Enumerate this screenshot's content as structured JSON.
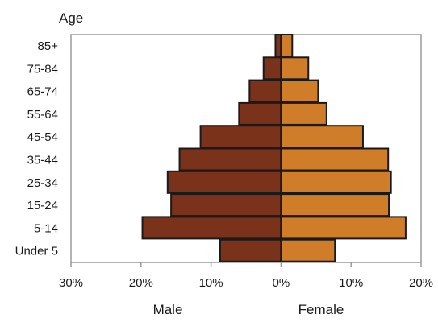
{
  "chart_data": {
    "type": "bar",
    "orientation": "horizontal",
    "y_axis_title": "Age",
    "categories": [
      "85+",
      "75-84",
      "65-74",
      "55-64",
      "45-54",
      "35-44",
      "25-34",
      "15-24",
      "5-14",
      "Under 5"
    ],
    "series": [
      {
        "name": "Male",
        "values": [
          0.8,
          2.5,
          4.5,
          6.0,
          11.5,
          14.5,
          16.2,
          15.7,
          19.8,
          8.7
        ],
        "color": "#7a331a"
      },
      {
        "name": "Female",
        "values": [
          1.6,
          3.9,
          5.3,
          6.5,
          11.7,
          15.3,
          15.7,
          15.4,
          17.8,
          7.7
        ],
        "color": "#d07d2a"
      }
    ],
    "x_ticks": [
      "30%",
      "20%",
      "10%",
      "0%",
      "10%",
      "20%"
    ],
    "xlim": [
      -30,
      20
    ],
    "grid": false
  }
}
